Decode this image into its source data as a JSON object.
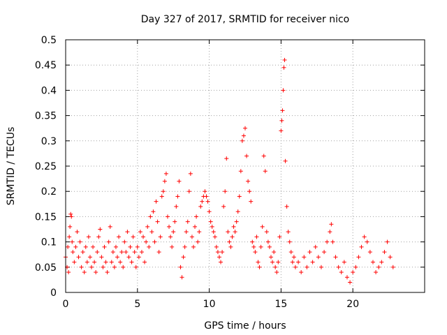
{
  "chart_data": {
    "type": "scatter",
    "title": "Day 327 of 2017, SRMTID for receiver nico",
    "xlabel": "GPS time / hours",
    "ylabel": "SRMTID / TECUs",
    "xlim": [
      0,
      25
    ],
    "ylim": [
      0,
      0.5
    ],
    "xticks": [
      "0",
      "5",
      "10",
      "15",
      "20"
    ],
    "yticks": [
      "0",
      "0.05",
      "0.1",
      "0.15",
      "0.2",
      "0.25",
      "0.3",
      "0.35",
      "0.4",
      "0.45",
      "0.5"
    ],
    "grid": true,
    "marker": "plus",
    "series": [
      {
        "color": "#ff0000",
        "points": [
          [
            0.0,
            0.07
          ],
          [
            0.1,
            0.05
          ],
          [
            0.15,
            0.09
          ],
          [
            0.2,
            0.04
          ],
          [
            0.25,
            0.11
          ],
          [
            0.3,
            0.13
          ],
          [
            0.35,
            0.155
          ],
          [
            0.4,
            0.15
          ],
          [
            0.45,
            0.1
          ],
          [
            0.5,
            0.08
          ],
          [
            0.6,
            0.06
          ],
          [
            0.7,
            0.09
          ],
          [
            0.8,
            0.12
          ],
          [
            0.9,
            0.07
          ],
          [
            1.0,
            0.1
          ],
          [
            1.1,
            0.05
          ],
          [
            1.2,
            0.08
          ],
          [
            1.3,
            0.04
          ],
          [
            1.4,
            0.09
          ],
          [
            1.5,
            0.06
          ],
          [
            1.6,
            0.11
          ],
          [
            1.7,
            0.07
          ],
          [
            1.8,
            0.05
          ],
          [
            1.9,
            0.09
          ],
          [
            2.0,
            0.06
          ],
          [
            2.1,
            0.04
          ],
          [
            2.2,
            0.08
          ],
          [
            2.3,
            0.11
          ],
          [
            2.4,
            0.125
          ],
          [
            2.5,
            0.07
          ],
          [
            2.6,
            0.05
          ],
          [
            2.7,
            0.09
          ],
          [
            2.8,
            0.06
          ],
          [
            2.9,
            0.04
          ],
          [
            3.0,
            0.1
          ],
          [
            3.1,
            0.13
          ],
          [
            3.2,
            0.06
          ],
          [
            3.3,
            0.08
          ],
          [
            3.4,
            0.05
          ],
          [
            3.5,
            0.09
          ],
          [
            3.6,
            0.07
          ],
          [
            3.7,
            0.11
          ],
          [
            3.8,
            0.06
          ],
          [
            3.9,
            0.08
          ],
          [
            4.0,
            0.05
          ],
          [
            4.1,
            0.1
          ],
          [
            4.2,
            0.08
          ],
          [
            4.3,
            0.12
          ],
          [
            4.4,
            0.07
          ],
          [
            4.5,
            0.09
          ],
          [
            4.6,
            0.06
          ],
          [
            4.7,
            0.11
          ],
          [
            4.8,
            0.08
          ],
          [
            4.9,
            0.05
          ],
          [
            5.0,
            0.09
          ],
          [
            5.1,
            0.07
          ],
          [
            5.2,
            0.12
          ],
          [
            5.3,
            0.08
          ],
          [
            5.4,
            0.11
          ],
          [
            5.5,
            0.06
          ],
          [
            5.6,
            0.1
          ],
          [
            5.7,
            0.13
          ],
          [
            5.8,
            0.09
          ],
          [
            5.9,
            0.15
          ],
          [
            6.0,
            0.12
          ],
          [
            6.1,
            0.16
          ],
          [
            6.2,
            0.1
          ],
          [
            6.3,
            0.18
          ],
          [
            6.4,
            0.14
          ],
          [
            6.5,
            0.08
          ],
          [
            6.6,
            0.11
          ],
          [
            6.7,
            0.19
          ],
          [
            6.8,
            0.2
          ],
          [
            6.9,
            0.22
          ],
          [
            7.0,
            0.235
          ],
          [
            7.1,
            0.15
          ],
          [
            7.2,
            0.13
          ],
          [
            7.3,
            0.11
          ],
          [
            7.4,
            0.09
          ],
          [
            7.5,
            0.12
          ],
          [
            7.6,
            0.14
          ],
          [
            7.7,
            0.17
          ],
          [
            7.8,
            0.19
          ],
          [
            7.9,
            0.22
          ],
          [
            8.0,
            0.05
          ],
          [
            8.1,
            0.03
          ],
          [
            8.2,
            0.07
          ],
          [
            8.3,
            0.09
          ],
          [
            8.4,
            0.12
          ],
          [
            8.5,
            0.14
          ],
          [
            8.6,
            0.2
          ],
          [
            8.7,
            0.235
          ],
          [
            8.8,
            0.11
          ],
          [
            8.9,
            0.09
          ],
          [
            9.0,
            0.13
          ],
          [
            9.1,
            0.15
          ],
          [
            9.2,
            0.1
          ],
          [
            9.3,
            0.12
          ],
          [
            9.4,
            0.17
          ],
          [
            9.5,
            0.18
          ],
          [
            9.6,
            0.19
          ],
          [
            9.7,
            0.2
          ],
          [
            9.8,
            0.19
          ],
          [
            9.9,
            0.18
          ],
          [
            10.0,
            0.16
          ],
          [
            10.1,
            0.14
          ],
          [
            10.2,
            0.13
          ],
          [
            10.3,
            0.12
          ],
          [
            10.4,
            0.11
          ],
          [
            10.5,
            0.09
          ],
          [
            10.6,
            0.08
          ],
          [
            10.7,
            0.07
          ],
          [
            10.8,
            0.06
          ],
          [
            10.9,
            0.08
          ],
          [
            11.0,
            0.17
          ],
          [
            11.1,
            0.2
          ],
          [
            11.2,
            0.265
          ],
          [
            11.3,
            0.12
          ],
          [
            11.4,
            0.1
          ],
          [
            11.5,
            0.09
          ],
          [
            11.6,
            0.11
          ],
          [
            11.7,
            0.13
          ],
          [
            11.8,
            0.12
          ],
          [
            11.9,
            0.14
          ],
          [
            12.0,
            0.16
          ],
          [
            12.1,
            0.19
          ],
          [
            12.2,
            0.24
          ],
          [
            12.3,
            0.3
          ],
          [
            12.4,
            0.31
          ],
          [
            12.5,
            0.325
          ],
          [
            12.6,
            0.27
          ],
          [
            12.7,
            0.22
          ],
          [
            12.8,
            0.2
          ],
          [
            12.9,
            0.18
          ],
          [
            13.0,
            0.1
          ],
          [
            13.1,
            0.09
          ],
          [
            13.2,
            0.08
          ],
          [
            13.3,
            0.11
          ],
          [
            13.4,
            0.06
          ],
          [
            13.5,
            0.05
          ],
          [
            13.6,
            0.09
          ],
          [
            13.7,
            0.13
          ],
          [
            13.8,
            0.27
          ],
          [
            13.9,
            0.24
          ],
          [
            14.0,
            0.12
          ],
          [
            14.1,
            0.1
          ],
          [
            14.2,
            0.09
          ],
          [
            14.3,
            0.07
          ],
          [
            14.4,
            0.06
          ],
          [
            14.5,
            0.08
          ],
          [
            14.6,
            0.05
          ],
          [
            14.7,
            0.04
          ],
          [
            14.8,
            0.06
          ],
          [
            14.9,
            0.11
          ],
          [
            15.0,
            0.32
          ],
          [
            15.05,
            0.34
          ],
          [
            15.1,
            0.36
          ],
          [
            15.15,
            0.4
          ],
          [
            15.2,
            0.445
          ],
          [
            15.25,
            0.46
          ],
          [
            15.3,
            0.26
          ],
          [
            15.4,
            0.17
          ],
          [
            15.5,
            0.12
          ],
          [
            15.6,
            0.1
          ],
          [
            15.7,
            0.08
          ],
          [
            15.8,
            0.06
          ],
          [
            15.9,
            0.07
          ],
          [
            16.0,
            0.05
          ],
          [
            16.2,
            0.06
          ],
          [
            16.4,
            0.04
          ],
          [
            16.6,
            0.07
          ],
          [
            16.8,
            0.05
          ],
          [
            17.0,
            0.08
          ],
          [
            17.2,
            0.06
          ],
          [
            17.4,
            0.09
          ],
          [
            17.6,
            0.07
          ],
          [
            17.8,
            0.05
          ],
          [
            18.0,
            0.08
          ],
          [
            18.2,
            0.1
          ],
          [
            18.4,
            0.12
          ],
          [
            18.5,
            0.135
          ],
          [
            18.6,
            0.1
          ],
          [
            18.8,
            0.07
          ],
          [
            19.0,
            0.05
          ],
          [
            19.2,
            0.04
          ],
          [
            19.4,
            0.06
          ],
          [
            19.6,
            0.03
          ],
          [
            19.8,
            0.02
          ],
          [
            20.0,
            0.04
          ],
          [
            20.2,
            0.05
          ],
          [
            20.4,
            0.07
          ],
          [
            20.6,
            0.09
          ],
          [
            20.8,
            0.11
          ],
          [
            21.0,
            0.1
          ],
          [
            21.2,
            0.08
          ],
          [
            21.4,
            0.06
          ],
          [
            21.6,
            0.04
          ],
          [
            21.8,
            0.05
          ],
          [
            22.0,
            0.06
          ],
          [
            22.2,
            0.08
          ],
          [
            22.4,
            0.1
          ],
          [
            22.6,
            0.07
          ],
          [
            22.8,
            0.05
          ]
        ]
      }
    ]
  }
}
